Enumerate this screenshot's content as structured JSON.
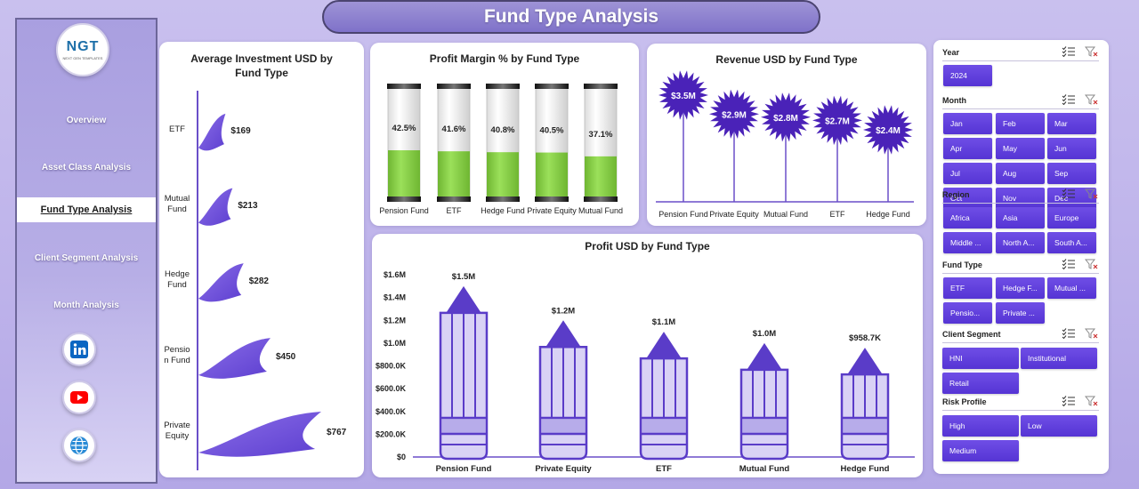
{
  "header": {
    "title": "Fund Type Analysis"
  },
  "logo": {
    "mark": "NGT",
    "sub": "NEXT GEN TEMPLATES"
  },
  "sidebar": {
    "items": [
      {
        "label": "Overview",
        "active": false
      },
      {
        "label": "Asset Class Analysis",
        "active": false
      },
      {
        "label": "Fund Type Analysis",
        "active": true
      },
      {
        "label": "Client Segment Analysis",
        "active": false
      },
      {
        "label": "Month Analysis",
        "active": false
      }
    ],
    "social": [
      "linkedin-icon",
      "youtube-icon",
      "globe-icon"
    ]
  },
  "charts": {
    "avg_investment": {
      "title_line1": "Average Investment USD by",
      "title_line2": "Fund Type"
    },
    "profit_margin": {
      "title": "Profit Margin % by Fund Type"
    },
    "revenue": {
      "title": "Revenue USD by Fund Type"
    },
    "profit": {
      "title": "Profit USD by Fund Type"
    }
  },
  "chart_data": [
    {
      "id": "avg_investment",
      "type": "bar",
      "orientation": "horizontal",
      "title": "Average Investment USD by Fund Type",
      "categories": [
        "ETF",
        "Mutual Fund",
        "Hedge Fund",
        "Pension Fund",
        "Private Equity"
      ],
      "category_labels": [
        [
          "ETF"
        ],
        [
          "Mutual",
          "Fund"
        ],
        [
          "Hedge",
          "Fund"
        ],
        [
          "Pensio",
          "n Fund"
        ],
        [
          "Private",
          "Equity"
        ]
      ],
      "values": [
        169,
        213,
        282,
        450,
        767
      ],
      "labels": [
        "$169",
        "$213",
        "$282",
        "$450",
        "$767"
      ],
      "color": "#7b5ce0"
    },
    {
      "id": "profit_margin",
      "type": "bar",
      "title": "Profit Margin % by Fund Type",
      "categories": [
        "Pension Fund",
        "ETF",
        "Hedge Fund",
        "Private Equity",
        "Mutual Fund"
      ],
      "values": [
        42.5,
        41.6,
        40.8,
        40.5,
        37.1
      ],
      "labels": [
        "42.5%",
        "41.6%",
        "40.8%",
        "40.5%",
        "37.1%"
      ],
      "ylim": [
        0,
        100
      ],
      "color": "#8bd04a"
    },
    {
      "id": "revenue",
      "type": "bar",
      "title": "Revenue USD by Fund Type",
      "categories": [
        "Pension Fund",
        "Private Equity",
        "Mutual Fund",
        "ETF",
        "Hedge Fund"
      ],
      "values": [
        3.5,
        2.9,
        2.8,
        2.7,
        2.4
      ],
      "labels": [
        "$3.5M",
        "$2.9M",
        "$2.8M",
        "$2.7M",
        "$2.4M"
      ],
      "unit": "M",
      "color": "#4a22b8"
    },
    {
      "id": "profit",
      "type": "bar",
      "title": "Profit USD by Fund Type",
      "categories": [
        "Pension Fund",
        "Private Equity",
        "ETF",
        "Mutual Fund",
        "Hedge Fund"
      ],
      "values": [
        1.5,
        1.2,
        1.1,
        1.0,
        0.9587
      ],
      "labels": [
        "$1.5M",
        "$1.2M",
        "$1.1M",
        "$1.0M",
        "$958.7K"
      ],
      "ylim": [
        0,
        1.6
      ],
      "yticks": [
        "$0",
        "$200.0K",
        "$400.0K",
        "$600.0K",
        "$800.0K",
        "$1.0M",
        "$1.2M",
        "$1.4M",
        "$1.6M"
      ],
      "color": "#d8d2f4"
    }
  ],
  "slicers": [
    {
      "title": "Year",
      "items": [
        "2024"
      ]
    },
    {
      "title": "Month",
      "items": [
        "Jan",
        "Feb",
        "Mar",
        "Apr",
        "May",
        "Jun",
        "Jul",
        "Aug",
        "Sep",
        "Oct",
        "Nov",
        "Dec"
      ]
    },
    {
      "title": "Region",
      "items": [
        "Africa",
        "Asia",
        "Europe",
        "Middle ...",
        "North A...",
        "South A..."
      ]
    },
    {
      "title": "Fund Type",
      "items": [
        "ETF",
        "Hedge F...",
        "Mutual ...",
        "Pensio...",
        "Private ..."
      ]
    },
    {
      "title": "Client Segment",
      "items": [
        "HNI",
        "Institutional",
        "Retail"
      ]
    },
    {
      "title": "Risk Profile",
      "items": [
        "High",
        "Low",
        "Medium"
      ]
    }
  ],
  "colors": {
    "accent": "#5534d4",
    "sidebar": "#a99fe0",
    "bar_green": "#8bd04a",
    "burst": "#4a22b8"
  }
}
